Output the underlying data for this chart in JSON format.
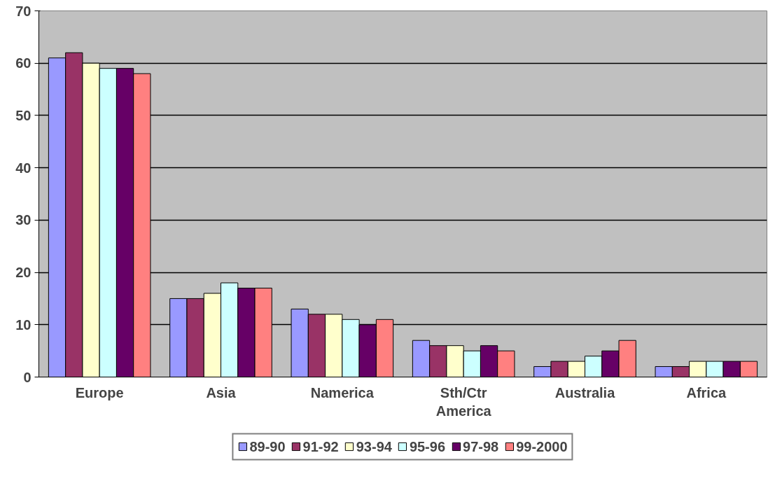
{
  "chart_data": {
    "type": "bar",
    "categories": [
      "Europe",
      "Asia",
      "Namerica",
      "Sth/Ctr America",
      "Australia",
      "Africa"
    ],
    "series": [
      {
        "name": "89-90",
        "color": "#9999ff",
        "values": [
          61,
          15,
          13,
          7,
          2,
          2
        ]
      },
      {
        "name": "91-92",
        "color": "#993366",
        "values": [
          62,
          15,
          12,
          6,
          3,
          2
        ]
      },
      {
        "name": "93-94",
        "color": "#ffffcc",
        "values": [
          60,
          16,
          12,
          6,
          3,
          3
        ]
      },
      {
        "name": "95-96",
        "color": "#ccffff",
        "values": [
          59,
          18,
          11,
          5,
          4,
          3
        ]
      },
      {
        "name": "97-98",
        "color": "#660066",
        "values": [
          59,
          17,
          10,
          6,
          5,
          3
        ]
      },
      {
        "name": "99-2000",
        "color": "#ff8080",
        "values": [
          58,
          17,
          11,
          5,
          7,
          3
        ]
      }
    ],
    "ylim": [
      0,
      70
    ],
    "yticks": [
      0,
      10,
      20,
      30,
      40,
      50,
      60,
      70
    ],
    "grid": "y",
    "legend": "bottom"
  }
}
